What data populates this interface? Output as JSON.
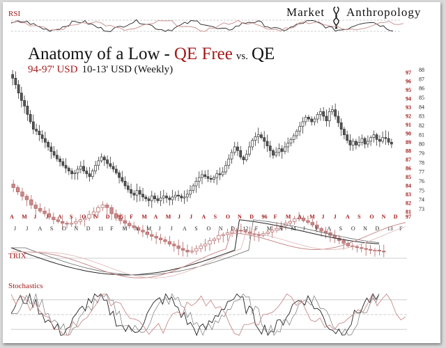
{
  "header": {
    "brand_left": "Market",
    "brand_right": "Anthropology",
    "title_prefix": "Anatomy of a Low",
    "title_dash": "-",
    "title_red": "QE Free",
    "title_vs": "vs.",
    "title_end": "QE",
    "subtitle_red": "94-97' USD",
    "subtitle_black": "10-13' USD (Weekly)"
  },
  "panels": {
    "rsi_label": "RSI",
    "trix_label": "TRIX",
    "stoch_label": "Stochastics"
  },
  "colors": {
    "red": "#a31a1a",
    "red_line": "#c98a8a",
    "dark": "#222222",
    "grid": "#9a9a9a"
  },
  "chart_data": {
    "type": "candlestick",
    "series": [
      {
        "name": "94-97' USD",
        "color": "#a31a1a"
      },
      {
        "name": "10-13' USD (Weekly)",
        "color": "#222222"
      }
    ],
    "axis_red_months": [
      "A",
      "M",
      "J",
      "J",
      "A",
      "S",
      "O",
      "N",
      "D",
      "95",
      "F",
      "M",
      "A",
      "M",
      "J",
      "J",
      "A",
      "S",
      "O",
      "N",
      "D",
      "96",
      "F",
      "M",
      "A",
      "M",
      "J",
      "J",
      "A",
      "S",
      "O",
      "N",
      "D",
      "97"
    ],
    "axis_black_months": [
      "J",
      "J",
      "A",
      "S",
      "O",
      "N",
      "D",
      "11",
      "F",
      "M",
      "A",
      "M",
      "J",
      "J",
      "A",
      "S",
      "O",
      "N",
      "D",
      "12",
      "F",
      "M",
      "A",
      "M",
      "J",
      "J",
      "A",
      "S",
      "O",
      "N",
      "D",
      "13",
      "F"
    ],
    "y_right_red": {
      "ticks": [
        97,
        96,
        95,
        94,
        93,
        92,
        91,
        90,
        89,
        88,
        87,
        86,
        85,
        84,
        83,
        82,
        81
      ],
      "range": [
        81,
        97
      ]
    },
    "y_right_black": {
      "ticks": [
        88,
        87,
        86,
        85,
        84,
        83,
        82,
        81,
        80,
        79,
        78,
        77,
        76,
        75,
        74,
        73
      ],
      "range": [
        73,
        88
      ]
    },
    "black_close_weekly": [
      87,
      86.3,
      85.4,
      84.6,
      84,
      83.1,
      82.3,
      81.5,
      81.3,
      80.9,
      80.5,
      80.1,
      79.6,
      79.1,
      78.7,
      78.3,
      78,
      77.6,
      77.3,
      77,
      76.7,
      76.8,
      77.2,
      77.5,
      77,
      76.7,
      76.4,
      77,
      77.6,
      78.1,
      78.5,
      78.2,
      77.8,
      77.5,
      77.2,
      76.8,
      76.3,
      75.9,
      75.4,
      75,
      74.6,
      74.4,
      74.9,
      74.5,
      74.2,
      74,
      73.8,
      74.3,
      74,
      73.8,
      74.1,
      74.3,
      74.1,
      73.9,
      74.2,
      74.4,
      74.3,
      74.1,
      74.2,
      74.5,
      74.9,
      75.4,
      75.9,
      76.3,
      76.6,
      76.4,
      76.2,
      76.1,
      76.3,
      76.7,
      76.6,
      76.9,
      77.6,
      78.3,
      79,
      79.6,
      79.2,
      78.5,
      78.2,
      78.8,
      79.6,
      80.3,
      80.7,
      80.9,
      80.6,
      80.2,
      79.7,
      79.2,
      78.7,
      79,
      79.4,
      79.1,
      79.6,
      80,
      80.4,
      80.8,
      81.3,
      81.8,
      82.3,
      82.8,
      82.6,
      82.3,
      82.6,
      83.1,
      83.4,
      82.9,
      82.4,
      83.4,
      83.6,
      82.9,
      82.2,
      81.5,
      80.9,
      80.3,
      79.8,
      80.2,
      79.8,
      80.1,
      80.5,
      79.9,
      80.2,
      80.6,
      80.9,
      80.4,
      80.2,
      80.6,
      80.5,
      80.1,
      79.9
    ],
    "red_close_weekly": [
      85.6,
      85.1,
      84.6,
      84.2,
      83.6,
      83.2,
      82.9,
      82.6,
      82.2,
      81.9,
      81.7,
      81.5,
      81.4,
      81.5,
      81.7,
      81.9,
      82.1,
      82.5,
      82.8,
      83.3,
      83.6,
      83.3,
      82.6,
      82.1,
      81.8,
      81.5,
      81.2,
      81,
      80.7,
      80.5,
      80.2,
      80,
      79.8,
      79.6,
      79.4,
      79.1,
      78.9,
      78.6,
      78.4,
      78.2,
      78.3,
      78.6,
      78.9,
      79.1,
      79.5,
      79.7,
      80.1,
      80.2,
      80.4,
      80.6,
      80.7,
      80.6,
      80.5,
      80.3,
      80.2,
      80.1,
      80.3,
      80.5,
      80.7,
      80.9,
      81.2,
      81.5,
      81.7,
      82,
      82.1,
      81.8,
      81.6,
      81.3,
      80.9,
      80.6,
      80.4,
      80.1,
      79.8,
      79.5,
      79.2,
      78.9,
      78.8,
      78.7,
      78.6,
      78.5,
      78.4,
      78.4,
      78.3,
      78.2
    ],
    "tick_marks": {
      "rsi_bold": 68,
      "rsi_small": 30,
      "stoch_levels": [
        80,
        50,
        20
      ]
    }
  }
}
